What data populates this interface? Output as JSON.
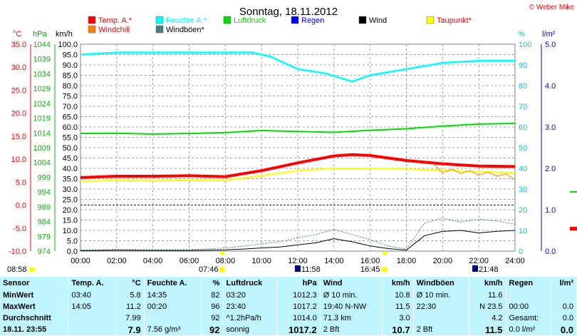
{
  "title": "Sonntag, 18.11.2012",
  "copyright": "© Weber Mike",
  "legend": [
    {
      "label": "Temp. A.*",
      "color": "#ff0000"
    },
    {
      "label": "Feuchte A.*",
      "color": "#00ffff"
    },
    {
      "label": "Luftdruck",
      "color": "#00dd00"
    },
    {
      "label": "Regen",
      "color": "#0000ff"
    },
    {
      "label": "Wind",
      "color": "#000000"
    },
    {
      "label": "Taupunkt*",
      "color": "#ffff00"
    },
    {
      "label": "Windchill",
      "color": "#ff8000"
    },
    {
      "label": "Windböen*",
      "color": "#408080"
    }
  ],
  "axis_units": {
    "temp": "°C",
    "pressure": "hPa",
    "wind": "km/h",
    "humidity": "%",
    "rain": "l/m²"
  },
  "sun_events": {
    "sunrise": "07:46",
    "sunset": "16:45",
    "dawn": "08:58",
    "moonrise": "11:58",
    "moonset": "21:48"
  },
  "chart_data": {
    "type": "line",
    "title": "Sonntag, 18.11.2012",
    "x_ticks": [
      "00:00",
      "02:00",
      "04:00",
      "06:00",
      "08:00",
      "10:00",
      "12:00",
      "14:00",
      "16:00",
      "18:00",
      "20:00",
      "22:00",
      "24:00"
    ],
    "axes": {
      "temp_c": {
        "range": [
          -10,
          35
        ],
        "ticks": [
          "35.0",
          "30.0",
          "25.0",
          "20.0",
          "15.0",
          "10.0",
          "5.0",
          "0.0",
          "-5.0",
          "-10.0"
        ]
      },
      "pressure_hpa": {
        "range": [
          974,
          1044
        ],
        "ticks": [
          "1044",
          "1039",
          "1034",
          "1029",
          "1024",
          "1019",
          "1014",
          "1009",
          "1004",
          "999",
          "994",
          "989",
          "984",
          "979",
          "974"
        ]
      },
      "wind_kmh": {
        "range": [
          0,
          100
        ],
        "ticks": [
          "100.0",
          "95.0",
          "90.0",
          "85.0",
          "80.0",
          "75.0",
          "70.0",
          "65.0",
          "60.0",
          "55.0",
          "50.0",
          "45.0",
          "40.0",
          "35.0",
          "30.0",
          "25.0",
          "20.0",
          "15.0",
          "10.0",
          "5.0",
          "0.0"
        ]
      },
      "humidity_pct": {
        "range": [
          0,
          100
        ],
        "ticks": [
          "100",
          "90",
          "80",
          "70",
          "60",
          "50",
          "40",
          "30",
          "20",
          "10",
          "0"
        ]
      },
      "rain_lm2": {
        "range": [
          0,
          5
        ],
        "ticks": [
          "5.0",
          "4.0",
          "3.0",
          "2.0",
          "1.0",
          "0.0"
        ]
      }
    },
    "series": [
      {
        "name": "Temp. A.*",
        "axis": "temp_c",
        "x": [
          0,
          2,
          4,
          6,
          8,
          10,
          12,
          14,
          15,
          16,
          18,
          20,
          22,
          24
        ],
        "y": [
          6.0,
          6.3,
          6.3,
          6.4,
          6.2,
          7.5,
          9.2,
          10.7,
          11.0,
          10.8,
          9.7,
          9.0,
          8.5,
          8.4
        ]
      },
      {
        "name": "Feuchte A.*",
        "axis": "humidity_pct",
        "x": [
          0,
          2,
          4,
          6,
          8,
          9.5,
          10.5,
          12,
          13.5,
          15,
          16,
          18,
          20,
          22,
          24
        ],
        "y": [
          95,
          96,
          96,
          96,
          96,
          96,
          94,
          88,
          86,
          82,
          85,
          88,
          91,
          92,
          92
        ]
      },
      {
        "name": "Luftdruck",
        "axis": "pressure_hpa",
        "x": [
          0,
          2,
          4,
          6,
          8,
          10,
          12,
          14,
          16,
          18,
          20,
          22,
          24
        ],
        "y": [
          1013.8,
          1013.9,
          1013.6,
          1013.8,
          1014.1,
          1014.8,
          1014.5,
          1014.2,
          1014.9,
          1015.4,
          1016.3,
          1017.0,
          1017.2
        ]
      },
      {
        "name": "Taupunkt*",
        "axis": "temp_c",
        "x": [
          0,
          2,
          4,
          6,
          8,
          10,
          12,
          14,
          16,
          18,
          20,
          22,
          24
        ],
        "y": [
          5.2,
          5.4,
          5.3,
          5.4,
          5.4,
          6.4,
          7.5,
          8.0,
          8.0,
          7.8,
          7.6,
          7.3,
          7.0
        ]
      },
      {
        "name": "Windchill",
        "axis": "temp_c",
        "x": [
          19.5,
          20,
          20.5,
          21,
          21.5,
          22,
          22.5,
          23,
          23.5,
          24
        ],
        "y": [
          9.0,
          7.0,
          7.8,
          6.9,
          7.5,
          6.5,
          7.2,
          6.3,
          6.8,
          5.5
        ]
      },
      {
        "name": "Wind",
        "axis": "wind_kmh",
        "x": [
          0,
          2,
          4,
          6,
          8,
          9,
          10,
          11,
          12,
          13,
          14,
          15,
          16,
          17,
          18,
          19,
          20,
          21,
          22,
          23,
          24
        ],
        "y": [
          0.2,
          0.4,
          0.3,
          0.3,
          0.6,
          1.0,
          1.5,
          2.0,
          3.0,
          4.0,
          6.0,
          4.5,
          2.5,
          1.2,
          0.5,
          7.5,
          9.5,
          10.0,
          8.8,
          9.6,
          10.0
        ]
      },
      {
        "name": "Windböen*",
        "axis": "wind_kmh",
        "x": [
          0,
          2,
          4,
          6,
          8,
          9,
          10,
          11,
          12,
          13,
          14,
          15,
          16,
          17,
          18,
          19,
          20,
          21,
          22,
          23,
          24
        ],
        "y": [
          0.5,
          0.8,
          0.7,
          0.7,
          1.5,
          2.5,
          3.5,
          4.5,
          6.5,
          8.0,
          10.5,
          8.0,
          5.5,
          2.5,
          1.0,
          13.5,
          16.0,
          14.0,
          15.5,
          14.5,
          13.0
        ]
      }
    ],
    "grid": true
  },
  "table": {
    "headers": [
      "Sensor",
      "Temp. A.",
      "°C",
      "Feuchte A.",
      "%",
      "Luftdruck",
      "hPa",
      "Wind",
      "km/h",
      "Windböen",
      "km/h",
      "Regen",
      "l/m²"
    ],
    "rows": [
      [
        "MinWert",
        "03:40",
        "5.8",
        "14:35",
        "82",
        "03:20",
        "1012.3",
        "Ø 10 min.",
        "10.8",
        "Ø 10 min.",
        "11.6",
        "",
        ""
      ],
      [
        "MaxWert",
        "14:05",
        "11.2",
        "00:20",
        "96",
        "23:40",
        "1017.2",
        "19:40  N-NW",
        "11.5",
        "22:30",
        "N 23.5",
        "00:00",
        "0.0"
      ],
      [
        "Durchschnitt",
        "",
        "7.99",
        "",
        "92",
        "^1.2hPa/h",
        "1014.0",
        "71.3 km",
        "3.0",
        "",
        "4.2",
        "Gesamt:",
        "0.0"
      ],
      [
        "18.11. 23:55",
        "",
        "7.9",
        "7.56 g/m³",
        "92",
        "sonnig",
        "1017.2",
        "2 Bft",
        "10.7",
        "2 Bft",
        "11.5",
        "0.0 l/m²",
        "0.0"
      ]
    ]
  }
}
